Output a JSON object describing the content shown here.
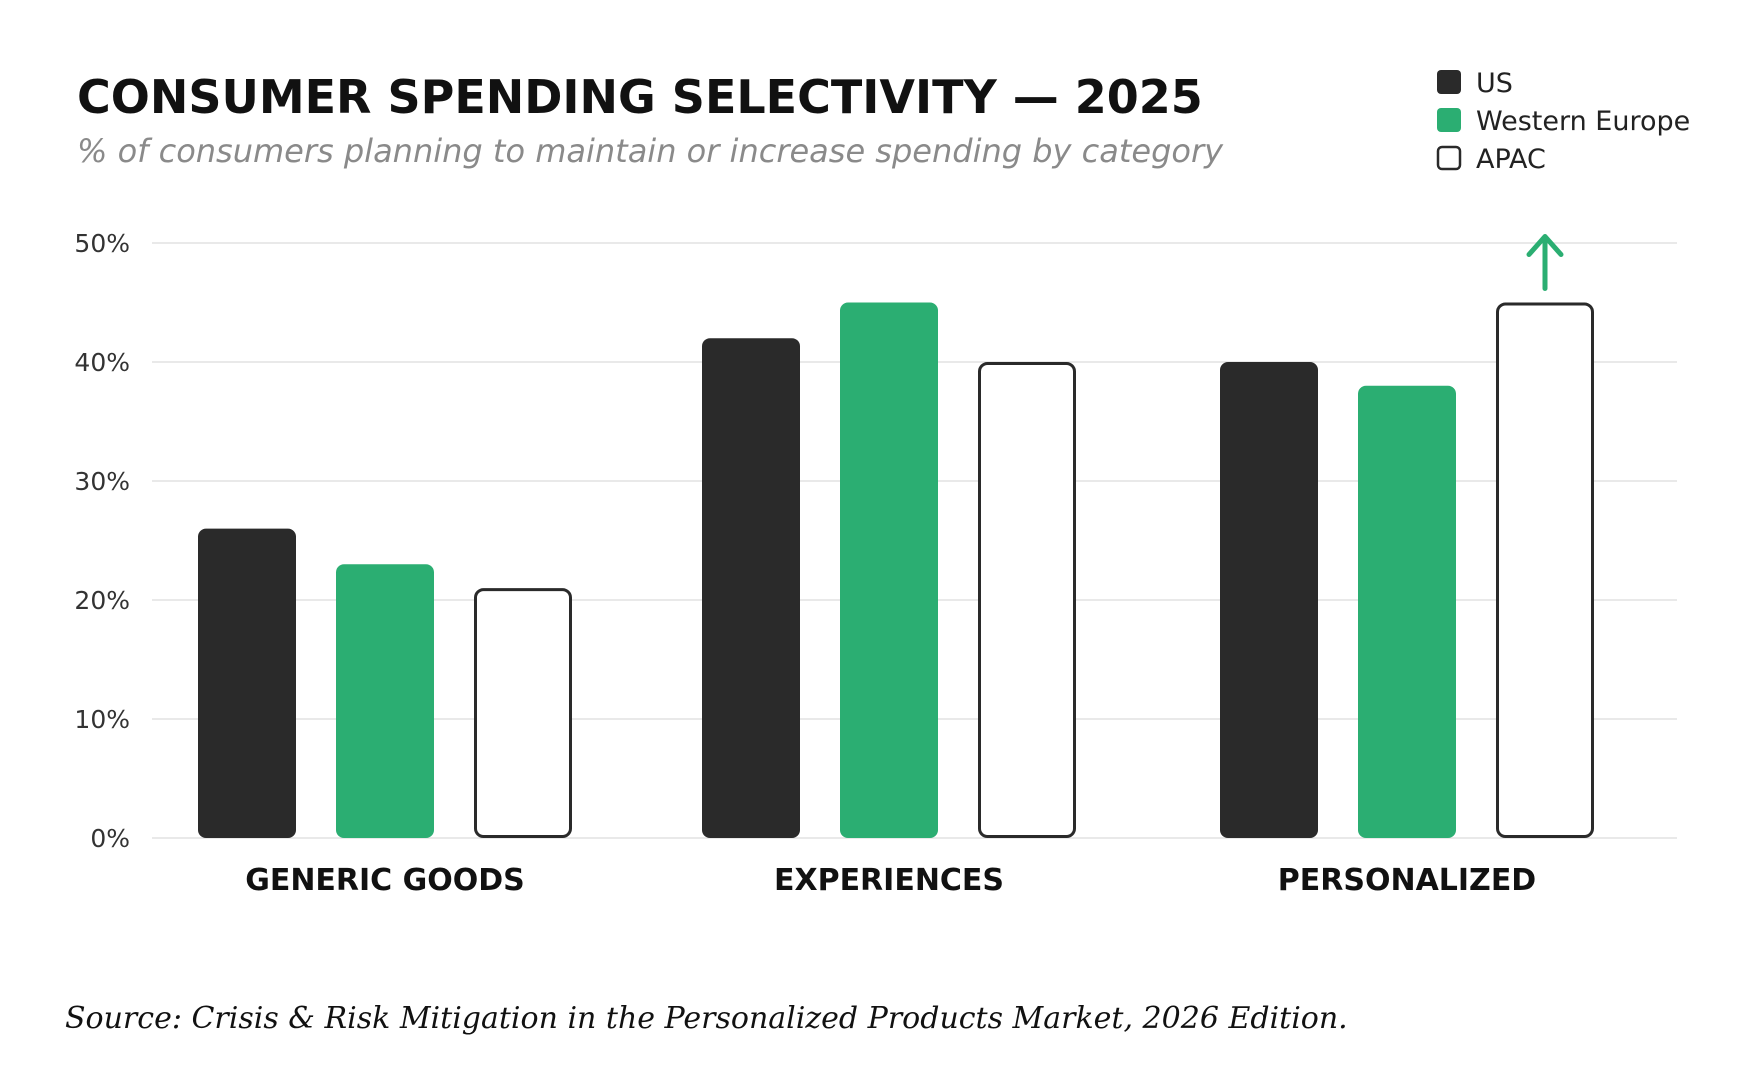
{
  "chart_data": {
    "type": "bar",
    "title": "CONSUMER SPENDING SELECTIVITY — 2025",
    "subtitle": "% of consumers planning to maintain or increase spending by category",
    "categories": [
      "GENERIC GOODS",
      "EXPERIENCES",
      "PERSONALIZED"
    ],
    "series": [
      {
        "name": "US",
        "values": [
          26,
          42,
          40
        ],
        "color": "#2a2a2a",
        "style": "filled"
      },
      {
        "name": "Western Europe",
        "values": [
          23,
          45,
          38
        ],
        "color": "#2bae72",
        "style": "filled"
      },
      {
        "name": "APAC",
        "values": [
          21,
          40,
          45
        ],
        "color": "#ffffff",
        "style": "outline"
      }
    ],
    "ylim": [
      0,
      50
    ],
    "yticks": [
      "0%",
      "10%",
      "20%",
      "30%",
      "40%",
      "50%"
    ],
    "ytick_values": [
      0,
      10,
      20,
      30,
      40,
      50
    ],
    "grid": true,
    "legend_position": "top-right",
    "annotation": {
      "type": "up-arrow",
      "category": "PERSONALIZED",
      "series": "APAC",
      "icon": "up-arrow-icon",
      "color": "#2bae72"
    }
  },
  "source": "Source: Crisis & Risk Mitigation in the Personalized Products Market, 2026 Edition."
}
